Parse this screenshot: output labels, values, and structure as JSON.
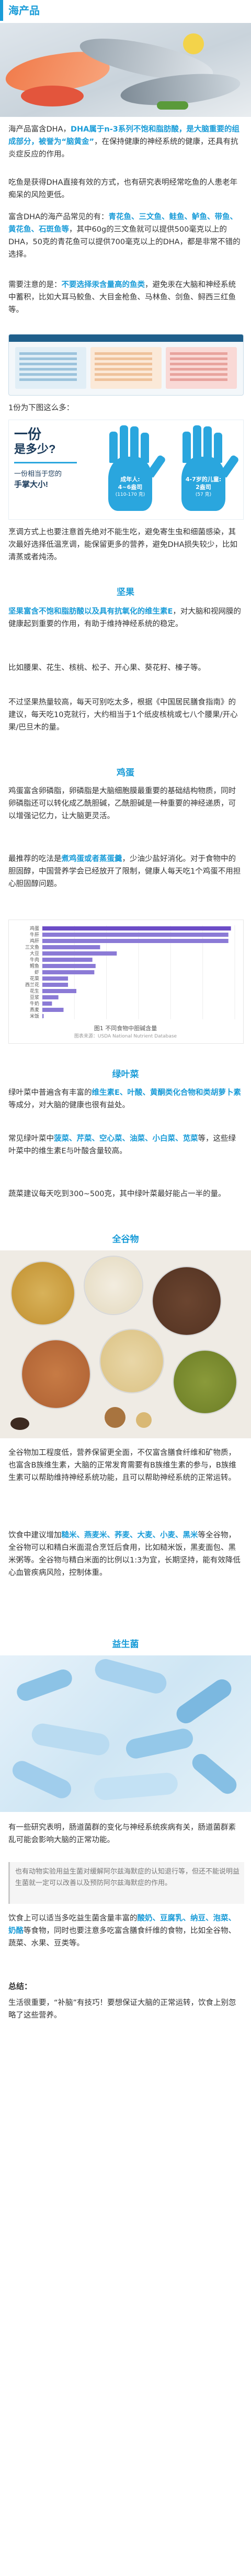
{
  "sections": {
    "seafood": "海产品",
    "nuts": "坚果",
    "eggs": "鸡蛋",
    "greens": "绿叶菜",
    "grains": "全谷物",
    "probiotics": "益生菌",
    "summary": "总结："
  },
  "seafood": {
    "p1_a": "海产品富含DHA，",
    "p1_hl": "DHA属于n-3系列不饱和脂肪酸，是大脑重要的组成部分，被誉为“脑黄金”",
    "p1_b": "，在保持健康的神经系统的健康，还具有抗炎症反应的作用。",
    "p2": "吃鱼是获得DHA直接有效的方式，也有研究表明经常吃鱼的人患老年痴呆的风险更低。",
    "p3_a": "富含DHA的海产品常见的有：",
    "p3_hl": "青花鱼、三文鱼、鲑鱼、鲈鱼、带鱼、黄花鱼、石斑鱼等",
    "p3_b": "，其中60g的三文鱼就可以提供500毫克以上的DHA，50克的青花鱼可以提供700毫克以上的DHA，都是非常不错的选择。",
    "p4_a": "需要注意的是：",
    "p4_hl": "不要选择汞含量高的鱼类",
    "p4_b": "，避免汞在大脑和神经系统中蓄积，比如大耳马鲛鱼、大目金枪鱼、马林鱼、剑鱼、鲟西三红鱼等。",
    "p5": "1份为下图这么多：",
    "portion_q1": "一份",
    "portion_q2": "是多少?",
    "portion_q3": "一份相当于您的",
    "portion_q4": "手掌大小!",
    "adult_label": "成年人:",
    "adult_range": "4~6盎司",
    "adult_unit": "(110-170 克)",
    "kid_label": "4-7岁的儿童:",
    "kid_range": "2盎司",
    "kid_unit": "(57 克)",
    "p6": "烹调方式上也要注意首先绝对不能生吃，避免寄生虫和细菌感染，其次最好选择低温烹调，能保留更多的营养，避免DHA损失较少，比如清蒸或者炖汤。"
  },
  "nuts": {
    "p1_hl": "坚果富含不饱和脂肪酸以及具有抗氧化的维生素E",
    "p1_b": "，对大脑和视网膜的健康起到重要的作用，有助于维持神经系统的稳定。",
    "p2": "比如腰果、花生、核桃、松子、开心果、葵花籽、榛子等。",
    "p3": "不过坚果热量较高，每天可别吃太多，根据《中国居民膳食指南》的建议，每天吃10克就行，大约相当于1个纸皮核桃或七八个腰果/开心果/巴旦木的量。"
  },
  "eggs": {
    "p1": "鸡蛋富含卵磷脂，卵磷脂是大脑细胞膜最重要的基础结构物质，同时卵磷脂还可以转化成乙酰胆碱，乙酰胆碱是一种重要的神经递质，可以增强记忆力，让大脑更灵活。",
    "p2_a": "最推荐的吃法是",
    "p2_hl": "煮鸡蛋或者蒸蛋羹",
    "p2_b": "，少油少盐好消化。对于食物中的胆固醇，中国营养学会已经放开了限制，健康人每天吃1个鸡蛋不用担心胆固醇问题。",
    "chart_caption": "图1 不同食物中胆碱含量",
    "chart_footer": "图表来源：USDA National Nutrient Database"
  },
  "chart_data": {
    "type": "bar",
    "orientation": "horizontal",
    "categories": [
      "鸡蛋",
      "牛肝",
      "鸡肝",
      "三文鱼",
      "大豆",
      "牛肉",
      "鳕鱼",
      "虾",
      "花菜",
      "西兰花",
      "花生",
      "豆浆",
      "牛奶",
      "燕麦",
      "米饭"
    ],
    "values": [
      294,
      290,
      290,
      90,
      116,
      78,
      83,
      81,
      40,
      40,
      53,
      25,
      15,
      33,
      2
    ],
    "xlim": [
      0,
      300
    ]
  },
  "greens": {
    "p1_a": "绿叶菜中普遍含有丰富的",
    "p1_hl": "维生素E、叶酸、黄酮类化合物和类胡萝卜素",
    "p1_b": "等成分，对大脑的健康也很有益处。",
    "p2_a": "常见绿叶菜中",
    "p2_hl": "菠菜、芹菜、空心菜、油菜、小白菜、苋菜",
    "p2_b": "等，这些绿叶菜中的维生素E与叶酸含量较高。",
    "p3": "蔬菜建议每天吃到300~500克，其中绿叶菜最好能占一半的量。"
  },
  "grains": {
    "p1": "全谷物加工程度低，营养保留更全面，不仅富含膳食纤维和矿物质，也富含B族维生素，大脑的正常发育需要有B族维生素的参与，B族维生素可以帮助维持神经系统功能，且可以帮助神经系统的正常运转。",
    "p2_a": "饮食中建议增加",
    "p2_hl": "糙米、燕麦米、荞麦、大麦、小麦、黑米",
    "p2_b": "等全谷物，全谷物可以和精白米面混合烹饪后食用，比如糙米饭，黑麦面包、黑米粥等。全谷物与精白米面的比例以1:3为宜，长期坚持，能有效降低心血管疾病风险，控制体重。"
  },
  "probiotics": {
    "p1": "有一些研究表明，肠道菌群的变化与神经系统疾病有关，肠道菌群紊乱可能会影响大脑的正常功能。",
    "note": "也有动物实验用益生菌对缓解阿尔兹海默症的认知退行等，但还不能说明益生菌就一定可以改善以及预防阿尔兹海默症的作用。",
    "p2_a": "饮食上可以适当多吃益生菌含量丰富的",
    "p2_hl": "酸奶、豆腐乳、纳豆、泡菜、奶酪",
    "p2_b": "等食物，同时也要注意多吃富含膳食纤维的食物，比如全谷物、蔬菜、水果、豆类等。"
  },
  "summary": {
    "p1": "生活很重要，“补脑”有技巧！要想保证大脑的正常运转，饮食上别忽略了这些营养。"
  }
}
